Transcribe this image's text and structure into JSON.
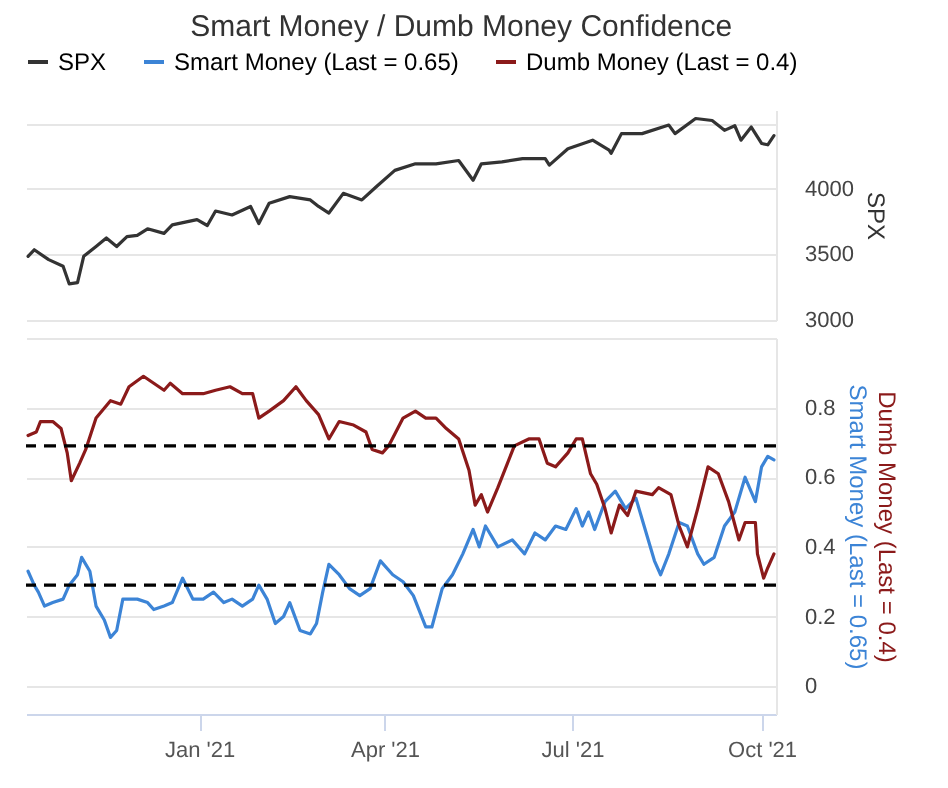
{
  "chart_data": [
    {
      "type": "line",
      "title": "Smart Money / Dumb Money Confidence",
      "ylabel": "SPX",
      "xlim": [
        "2020-10-09",
        "2021-10-08"
      ],
      "ylim": [
        3000,
        4600
      ],
      "yticks": [
        3000,
        3500,
        4000,
        {
          "value": 4500,
          "label": null
        }
      ],
      "tick_labels": "y",
      "grid": "y",
      "legend": "top",
      "series": [
        {
          "name": "SPX",
          "color": "#333333",
          "x": [
            "2020-10-10",
            "2020-10-13",
            "2020-10-20",
            "2020-10-27",
            "2020-10-30",
            "2020-11-03",
            "2020-11-06",
            "2020-11-12",
            "2020-11-17",
            "2020-11-22",
            "2020-11-27",
            "2020-12-02",
            "2020-12-07",
            "2020-12-15",
            "2020-12-19",
            "2020-12-31",
            "2021-01-05",
            "2021-01-09",
            "2021-01-17",
            "2021-01-26",
            "2021-01-30",
            "2021-02-04",
            "2021-02-14",
            "2021-02-24",
            "2021-02-28",
            "2021-03-05",
            "2021-03-12",
            "2021-03-21",
            "2021-03-28",
            "2021-04-06",
            "2021-04-16",
            "2021-04-26",
            "2021-05-07",
            "2021-05-14",
            "2021-05-18",
            "2021-05-28",
            "2021-06-07",
            "2021-06-18",
            "2021-06-20",
            "2021-06-29",
            "2021-07-11",
            "2021-07-19",
            "2021-07-20",
            "2021-07-25",
            "2021-08-04",
            "2021-08-17",
            "2021-08-20",
            "2021-08-30",
            "2021-09-07",
            "2021-09-13",
            "2021-09-18",
            "2021-09-21",
            "2021-09-26",
            "2021-10-01",
            "2021-10-04",
            "2021-10-07"
          ],
          "values": [
            3485,
            3535,
            3460,
            3410,
            3275,
            3285,
            3485,
            3560,
            3625,
            3560,
            3635,
            3645,
            3695,
            3660,
            3725,
            3765,
            3720,
            3830,
            3800,
            3865,
            3735,
            3890,
            3940,
            3915,
            3865,
            3815,
            3965,
            3915,
            4015,
            4140,
            4190,
            4190,
            4215,
            4065,
            4190,
            4205,
            4230,
            4230,
            4180,
            4305,
            4370,
            4295,
            4270,
            4420,
            4420,
            4485,
            4420,
            4535,
            4520,
            4445,
            4480,
            4370,
            4470,
            4345,
            4335,
            4405
          ]
        }
      ]
    },
    {
      "type": "line",
      "ylabel": "Smart Money (Last = 0.65)",
      "y2label": "Dumb Money (Last = 0.4)",
      "xlim": [
        "2020-10-09",
        "2021-10-08"
      ],
      "xticks": [
        {
          "value": "2021-01-01",
          "label": "Jan '21"
        },
        {
          "value": "2021-04-01",
          "label": "Apr '21"
        },
        {
          "value": "2021-07-01",
          "label": "Jul '21"
        },
        {
          "value": "2021-10-01",
          "label": "Oct '21"
        }
      ],
      "ylim": [
        -0.08,
        1
      ],
      "yticks": [
        0,
        0.2,
        0.4,
        0.6,
        0.8,
        {
          "value": 1,
          "label": null
        }
      ],
      "grid": "y",
      "legend": "top",
      "ref_lines": [
        {
          "axis": "y",
          "value": 0.69,
          "color": "#000000",
          "line_style": "dashed"
        },
        {
          "axis": "y",
          "value": 0.29,
          "color": "#000000",
          "line_style": "dashed"
        }
      ],
      "series": [
        {
          "name": "Smart Money (Last = 0.65)",
          "color": "#3c84d6",
          "x": [
            "2020-10-10",
            "2020-10-13",
            "2020-10-15",
            "2020-10-18",
            "2020-10-22",
            "2020-10-27",
            "2020-10-30",
            "2020-11-03",
            "2020-11-05",
            "2020-11-09",
            "2020-11-12",
            "2020-11-16",
            "2020-11-19",
            "2020-11-22",
            "2020-11-25",
            "2020-12-02",
            "2020-12-07",
            "2020-12-10",
            "2020-12-15",
            "2020-12-19",
            "2020-12-24",
            "2020-12-29",
            "2021-01-03",
            "2021-01-08",
            "2021-01-13",
            "2021-01-17",
            "2021-01-22",
            "2021-01-27",
            "2021-01-30",
            "2021-02-03",
            "2021-02-07",
            "2021-02-11",
            "2021-02-14",
            "2021-02-19",
            "2021-02-24",
            "2021-02-27",
            "2021-03-02",
            "2021-03-05",
            "2021-03-10",
            "2021-03-15",
            "2021-03-20",
            "2021-03-25",
            "2021-03-30",
            "2021-04-05",
            "2021-04-10",
            "2021-04-15",
            "2021-04-21",
            "2021-04-24",
            "2021-04-29",
            "2021-05-04",
            "2021-05-09",
            "2021-05-14",
            "2021-05-17",
            "2021-05-20",
            "2021-05-26",
            "2021-06-02",
            "2021-06-08",
            "2021-06-13",
            "2021-06-18",
            "2021-06-23",
            "2021-06-28",
            "2021-07-03",
            "2021-07-06",
            "2021-07-09",
            "2021-07-12",
            "2021-07-17",
            "2021-07-22",
            "2021-07-27",
            "2021-08-01",
            "2021-08-05",
            "2021-08-10",
            "2021-08-13",
            "2021-08-17",
            "2021-08-22",
            "2021-08-26",
            "2021-08-31",
            "2021-09-03",
            "2021-09-08",
            "2021-09-13",
            "2021-09-18",
            "2021-09-23",
            "2021-09-28",
            "2021-10-01",
            "2021-10-04",
            "2021-10-07"
          ],
          "values": [
            0.33,
            0.29,
            0.27,
            0.23,
            0.24,
            0.25,
            0.29,
            0.32,
            0.37,
            0.33,
            0.23,
            0.19,
            0.14,
            0.16,
            0.25,
            0.25,
            0.24,
            0.22,
            0.23,
            0.24,
            0.31,
            0.25,
            0.25,
            0.27,
            0.24,
            0.25,
            0.23,
            0.25,
            0.29,
            0.25,
            0.18,
            0.2,
            0.24,
            0.16,
            0.15,
            0.18,
            0.27,
            0.35,
            0.32,
            0.28,
            0.26,
            0.28,
            0.36,
            0.32,
            0.3,
            0.26,
            0.17,
            0.17,
            0.28,
            0.32,
            0.38,
            0.45,
            0.4,
            0.46,
            0.4,
            0.42,
            0.38,
            0.44,
            0.42,
            0.46,
            0.45,
            0.51,
            0.46,
            0.5,
            0.45,
            0.53,
            0.56,
            0.51,
            0.54,
            0.46,
            0.36,
            0.32,
            0.38,
            0.47,
            0.46,
            0.38,
            0.35,
            0.37,
            0.46,
            0.5,
            0.6,
            0.53,
            0.63,
            0.66,
            0.65
          ]
        },
        {
          "name": "Dumb Money (Last = 0.4)",
          "color": "#8b1a1a",
          "x": [
            "2020-10-10",
            "2020-10-14",
            "2020-10-16",
            "2020-10-22",
            "2020-10-26",
            "2020-10-29",
            "2020-10-31",
            "2020-11-04",
            "2020-11-07",
            "2020-11-12",
            "2020-11-19",
            "2020-11-24",
            "2020-11-28",
            "2020-12-05",
            "2020-12-10",
            "2020-12-15",
            "2020-12-18",
            "2020-12-24",
            "2021-01-03",
            "2021-01-09",
            "2021-01-16",
            "2021-01-22",
            "2021-01-27",
            "2021-01-30",
            "2021-02-04",
            "2021-02-11",
            "2021-02-17",
            "2021-02-22",
            "2021-02-28",
            "2021-03-05",
            "2021-03-10",
            "2021-03-17",
            "2021-03-23",
            "2021-03-26",
            "2021-03-31",
            "2021-04-03",
            "2021-04-10",
            "2021-04-16",
            "2021-04-21",
            "2021-04-26",
            "2021-05-01",
            "2021-05-07",
            "2021-05-12",
            "2021-05-15",
            "2021-05-18",
            "2021-05-21",
            "2021-05-26",
            "2021-06-03",
            "2021-06-10",
            "2021-06-15",
            "2021-06-19",
            "2021-06-23",
            "2021-06-29",
            "2021-07-03",
            "2021-07-06",
            "2021-07-10",
            "2021-07-13",
            "2021-07-17",
            "2021-07-20",
            "2021-07-24",
            "2021-07-28",
            "2021-08-01",
            "2021-08-09",
            "2021-08-12",
            "2021-08-18",
            "2021-08-22",
            "2021-08-26",
            "2021-08-31",
            "2021-09-05",
            "2021-09-10",
            "2021-09-15",
            "2021-09-20",
            "2021-09-23",
            "2021-09-28",
            "2021-09-29",
            "2021-10-02",
            "2021-10-04",
            "2021-10-07"
          ],
          "values": [
            0.72,
            0.73,
            0.76,
            0.76,
            0.74,
            0.67,
            0.59,
            0.64,
            0.68,
            0.77,
            0.82,
            0.81,
            0.86,
            0.89,
            0.87,
            0.85,
            0.87,
            0.84,
            0.84,
            0.85,
            0.86,
            0.84,
            0.84,
            0.77,
            0.79,
            0.82,
            0.86,
            0.82,
            0.78,
            0.71,
            0.76,
            0.75,
            0.73,
            0.68,
            0.67,
            0.69,
            0.77,
            0.79,
            0.77,
            0.77,
            0.74,
            0.71,
            0.62,
            0.52,
            0.55,
            0.5,
            0.57,
            0.69,
            0.71,
            0.71,
            0.64,
            0.63,
            0.67,
            0.71,
            0.71,
            0.61,
            0.58,
            0.51,
            0.44,
            0.52,
            0.49,
            0.56,
            0.55,
            0.57,
            0.55,
            0.46,
            0.4,
            0.51,
            0.63,
            0.61,
            0.53,
            0.42,
            0.47,
            0.47,
            0.38,
            0.31,
            0.34,
            0.38
          ]
        }
      ]
    }
  ]
}
